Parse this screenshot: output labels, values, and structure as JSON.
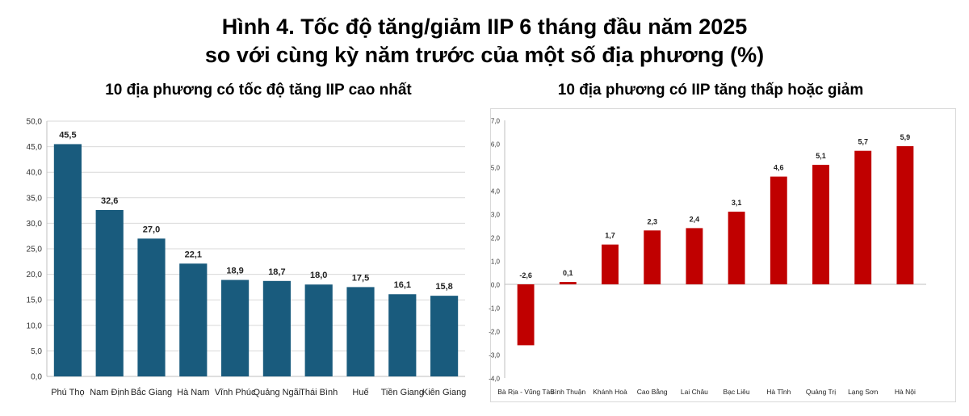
{
  "title": {
    "line1": "Hình 4. Tốc độ tăng/giảm IIP 6 tháng đầu năm 2025",
    "line2": "so với cùng kỳ năm trước của một số địa phương (%)"
  },
  "colors": {
    "left_bar": "#195b7d",
    "right_bar": "#c00000",
    "grid": "#d9d9d9"
  },
  "chart_data": [
    {
      "type": "bar",
      "title": "10 địa phương có tốc độ tăng IIP cao nhất",
      "xlabel": "",
      "ylabel": "",
      "categories": [
        "Phú Thọ",
        "Nam Định",
        "Bắc Giang",
        "Hà Nam",
        "Vĩnh Phúc",
        "Quảng Ngãi",
        "Thái Bình",
        "Huế",
        "Tiền Giang",
        "Kiên Giang"
      ],
      "values": [
        45.5,
        32.6,
        27.0,
        22.1,
        18.9,
        18.7,
        18.0,
        17.5,
        16.1,
        15.8
      ],
      "value_labels": [
        "45,5",
        "32,6",
        "27,0",
        "22,1",
        "18,9",
        "18,7",
        "18,0",
        "17,5",
        "16,1",
        "15,8"
      ],
      "ylim": [
        0,
        50
      ],
      "yticks": [
        0,
        5,
        10,
        15,
        20,
        25,
        30,
        35,
        40,
        45,
        50
      ],
      "ytick_labels": [
        "0,0",
        "5,0",
        "10,0",
        "15,0",
        "20,0",
        "25,0",
        "30,0",
        "35,0",
        "40,0",
        "45,0",
        "50,0"
      ],
      "grid": true,
      "legend": "none"
    },
    {
      "type": "bar",
      "title": "10 địa phương có IIP tăng thấp hoặc giảm",
      "xlabel": "",
      "ylabel": "",
      "categories": [
        "Bà Rịa - Vũng Tàu",
        "Bình Thuận",
        "Khánh Hoà",
        "Cao Bằng",
        "Lai Châu",
        "Bạc Liêu",
        "Hà Tĩnh",
        "Quảng Trị",
        "Lạng Sơn",
        "Hà Nội"
      ],
      "values": [
        -2.6,
        0.1,
        1.7,
        2.3,
        2.4,
        3.1,
        4.6,
        5.1,
        5.7,
        5.9
      ],
      "value_labels": [
        "-2,6",
        "0,1",
        "1,7",
        "2,3",
        "2,4",
        "3,1",
        "4,6",
        "5,1",
        "5,7",
        "5,9"
      ],
      "ylim": [
        -4,
        7
      ],
      "yticks": [
        -4,
        -3,
        -2,
        -1,
        0,
        1,
        2,
        3,
        4,
        5,
        6,
        7
      ],
      "ytick_labels": [
        "-4,0",
        "-3,0",
        "-2,0",
        "-1,0",
        "0,0",
        "1,0",
        "2,0",
        "3,0",
        "4,0",
        "5,0",
        "6,0",
        "7,0"
      ],
      "grid": false,
      "legend": "none"
    }
  ]
}
